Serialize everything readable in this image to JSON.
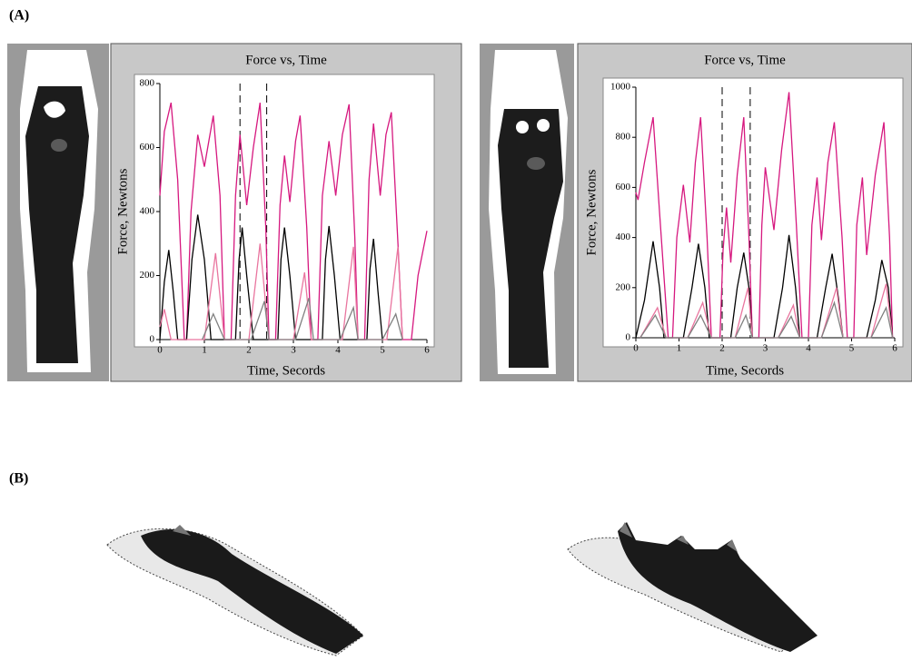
{
  "panel_labels": {
    "a": "(A)",
    "b": "(B)"
  },
  "chart_data": [
    {
      "type": "line",
      "title": "Force vs, Time",
      "x_label": "Time, Secords",
      "y_label": "Force, Newtons",
      "xlim": [
        0,
        6
      ],
      "xticks": [
        0,
        1,
        2,
        3,
        4,
        5,
        6
      ],
      "ylim": [
        0,
        800
      ],
      "yticks": [
        0,
        200,
        400,
        600,
        800
      ],
      "vlines": [
        1.8,
        2.4
      ],
      "series": [
        {
          "color": "#d6187f",
          "x": [
            0,
            0.1,
            0.25,
            0.4,
            0.55,
            0.6,
            0.7,
            0.85,
            1.0,
            1.1,
            1.2,
            1.35,
            1.45,
            1.6,
            1.7,
            1.8,
            1.95,
            2.1,
            2.25,
            2.38,
            2.45,
            2.6,
            2.7,
            2.8,
            2.92,
            3.05,
            3.15,
            3.3,
            3.4,
            3.55,
            3.65,
            3.8,
            3.95,
            4.1,
            4.25,
            4.38,
            4.45,
            4.6,
            4.7,
            4.8,
            4.95,
            5.08,
            5.2,
            5.35,
            5.45,
            5.65,
            5.8,
            6.0
          ],
          "values": [
            450,
            650,
            740,
            500,
            0,
            0,
            400,
            640,
            540,
            620,
            700,
            450,
            0,
            0,
            450,
            640,
            420,
            600,
            740,
            350,
            0,
            0,
            420,
            575,
            430,
            620,
            700,
            350,
            0,
            0,
            450,
            620,
            450,
            640,
            735,
            320,
            0,
            0,
            500,
            675,
            450,
            640,
            710,
            300,
            0,
            0,
            200,
            340
          ]
        },
        {
          "color": "#000000",
          "x": [
            0,
            0.1,
            0.2,
            0.3,
            0.4,
            0.6,
            0.72,
            0.85,
            1.0,
            1.15,
            1.7,
            1.78,
            1.85,
            1.95,
            2.1,
            2.65,
            2.72,
            2.8,
            2.92,
            3.05,
            3.65,
            3.72,
            3.8,
            3.92,
            4.05,
            4.65,
            4.72,
            4.8,
            4.9,
            5.0
          ],
          "values": [
            0,
            180,
            280,
            150,
            0,
            0,
            250,
            390,
            250,
            0,
            0,
            250,
            350,
            200,
            0,
            0,
            250,
            350,
            200,
            0,
            0,
            250,
            355,
            200,
            0,
            0,
            220,
            315,
            150,
            0
          ]
        },
        {
          "color": "#e9759f",
          "x": [
            0,
            0.1,
            0.25,
            1.0,
            1.25,
            1.45,
            2.0,
            2.25,
            2.45,
            3.0,
            3.25,
            3.4,
            4.1,
            4.35,
            4.45,
            5.1,
            5.35,
            5.45
          ],
          "values": [
            40,
            95,
            0,
            0,
            270,
            0,
            0,
            300,
            0,
            0,
            210,
            0,
            0,
            290,
            0,
            0,
            290,
            0
          ]
        },
        {
          "color": "#808080",
          "x": [
            0.95,
            1.2,
            1.45,
            2.05,
            2.35,
            2.45,
            3.05,
            3.35,
            3.45,
            4.05,
            4.35,
            4.45,
            5.0,
            5.3,
            5.45
          ],
          "values": [
            0,
            80,
            0,
            0,
            120,
            0,
            0,
            130,
            0,
            0,
            100,
            0,
            0,
            80,
            0
          ]
        }
      ]
    },
    {
      "type": "line",
      "title": "Force vs, Time",
      "x_label": "Time, Secords",
      "y_label": "Force, Newtons",
      "xlim": [
        0,
        6
      ],
      "xticks": [
        0,
        1,
        2,
        3,
        4,
        5,
        6
      ],
      "ylim": [
        0,
        1000
      ],
      "yticks": [
        0,
        200,
        400,
        600,
        800,
        1000
      ],
      "vlines": [
        2.0,
        2.65
      ],
      "series": [
        {
          "color": "#d6187f",
          "x": [
            0,
            0.05,
            0.2,
            0.4,
            0.55,
            0.75,
            0.85,
            0.95,
            1.1,
            1.25,
            1.38,
            1.5,
            1.65,
            1.75,
            1.95,
            2.02,
            2.1,
            2.2,
            2.35,
            2.5,
            2.62,
            2.7,
            2.85,
            2.92,
            3.0,
            3.2,
            3.38,
            3.55,
            3.72,
            3.85,
            4.0,
            4.08,
            4.2,
            4.3,
            4.45,
            4.6,
            4.78,
            4.9,
            5.05,
            5.12,
            5.25,
            5.35,
            5.55,
            5.75,
            5.88,
            5.95
          ],
          "values": [
            580,
            550,
            700,
            880,
            500,
            0,
            0,
            400,
            610,
            380,
            700,
            880,
            400,
            0,
            0,
            350,
            520,
            300,
            650,
            880,
            400,
            0,
            0,
            450,
            680,
            430,
            750,
            980,
            450,
            0,
            0,
            450,
            640,
            390,
            700,
            860,
            400,
            0,
            0,
            450,
            640,
            330,
            650,
            860,
            400,
            0
          ]
        },
        {
          "color": "#000000",
          "x": [
            0,
            0.2,
            0.4,
            0.55,
            0.65,
            1.1,
            1.3,
            1.45,
            1.6,
            1.7,
            2.2,
            2.35,
            2.5,
            2.62,
            2.7,
            3.2,
            3.4,
            3.55,
            3.7,
            3.8,
            4.2,
            4.4,
            4.55,
            4.7,
            4.8,
            5.35,
            5.55,
            5.7,
            5.85,
            5.95
          ],
          "values": [
            0,
            150,
            385,
            200,
            0,
            0,
            200,
            375,
            200,
            0,
            0,
            200,
            340,
            200,
            0,
            0,
            200,
            410,
            200,
            0,
            0,
            200,
            335,
            150,
            0,
            0,
            150,
            310,
            200,
            0
          ]
        },
        {
          "color": "#e9759f",
          "x": [
            0.1,
            0.5,
            0.7,
            1.2,
            1.55,
            1.75,
            2.3,
            2.6,
            2.7,
            3.3,
            3.65,
            3.8,
            4.3,
            4.65,
            4.8,
            5.45,
            5.8,
            5.95
          ],
          "values": [
            0,
            120,
            0,
            0,
            140,
            0,
            0,
            200,
            0,
            0,
            130,
            0,
            0,
            200,
            0,
            0,
            215,
            0
          ]
        },
        {
          "color": "#808080",
          "x": [
            0.1,
            0.45,
            0.7,
            1.2,
            1.5,
            1.75,
            2.3,
            2.55,
            2.7,
            3.3,
            3.6,
            3.8,
            4.3,
            4.6,
            4.8,
            5.45,
            5.8,
            5.95
          ],
          "values": [
            0,
            90,
            0,
            0,
            90,
            0,
            0,
            90,
            0,
            0,
            85,
            0,
            0,
            140,
            0,
            0,
            120,
            0
          ]
        }
      ]
    }
  ]
}
